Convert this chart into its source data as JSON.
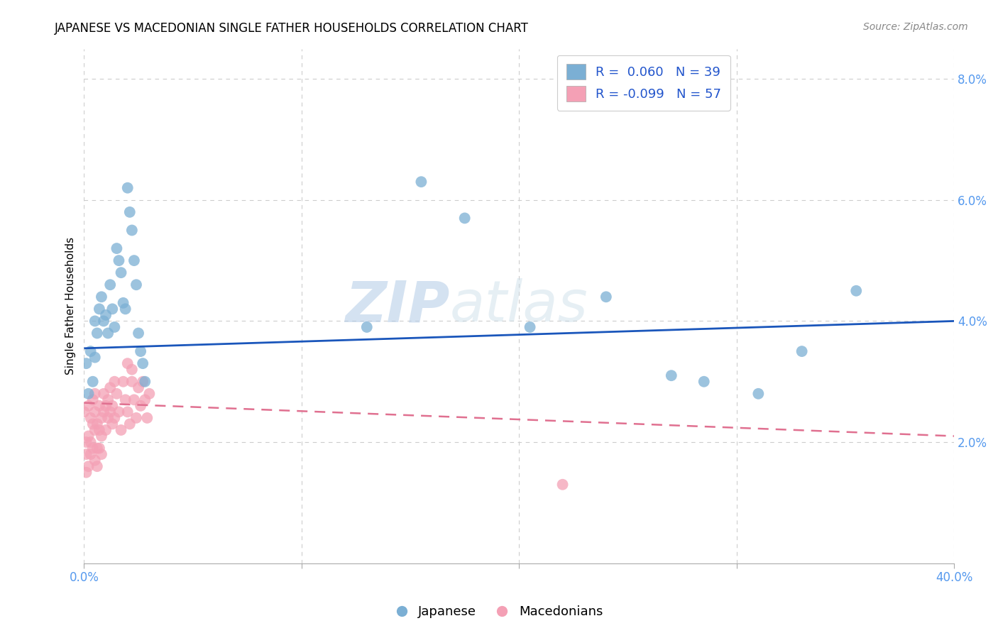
{
  "title": "JAPANESE VS MACEDONIAN SINGLE FATHER HOUSEHOLDS CORRELATION CHART",
  "source": "Source: ZipAtlas.com",
  "ylabel": "Single Father Households",
  "watermark_zip": "ZIP",
  "watermark_atlas": "atlas",
  "xlim": [
    0.0,
    0.4
  ],
  "ylim": [
    0.0,
    0.085
  ],
  "yticks": [
    0.02,
    0.04,
    0.06,
    0.08
  ],
  "ytick_labels": [
    "2.0%",
    "4.0%",
    "6.0%",
    "8.0%"
  ],
  "xticks": [
    0.0,
    0.1,
    0.2,
    0.3,
    0.4
  ],
  "xtick_labels": [
    "0.0%",
    "",
    "",
    "",
    "40.0%"
  ],
  "legend_japanese": "R =  0.060   N = 39",
  "legend_macedonian": "R = -0.099   N = 57",
  "japanese_color": "#7bafd4",
  "macedonian_color": "#f4a0b5",
  "trend_japanese_color": "#1a56bb",
  "trend_macedonian_color": "#e07090",
  "background_color": "#ffffff",
  "japanese_x": [
    0.001,
    0.002,
    0.003,
    0.004,
    0.005,
    0.005,
    0.006,
    0.007,
    0.008,
    0.009,
    0.01,
    0.011,
    0.012,
    0.013,
    0.014,
    0.015,
    0.016,
    0.017,
    0.018,
    0.019,
    0.02,
    0.021,
    0.022,
    0.023,
    0.024,
    0.025,
    0.026,
    0.027,
    0.028,
    0.13,
    0.155,
    0.175,
    0.205,
    0.24,
    0.27,
    0.285,
    0.31,
    0.33,
    0.355
  ],
  "japanese_y": [
    0.033,
    0.028,
    0.035,
    0.03,
    0.04,
    0.034,
    0.038,
    0.042,
    0.044,
    0.04,
    0.041,
    0.038,
    0.046,
    0.042,
    0.039,
    0.052,
    0.05,
    0.048,
    0.043,
    0.042,
    0.062,
    0.058,
    0.055,
    0.05,
    0.046,
    0.038,
    0.035,
    0.033,
    0.03,
    0.039,
    0.063,
    0.057,
    0.039,
    0.044,
    0.031,
    0.03,
    0.028,
    0.035,
    0.045
  ],
  "macedonian_x": [
    0.0,
    0.001,
    0.001,
    0.002,
    0.002,
    0.003,
    0.003,
    0.004,
    0.004,
    0.005,
    0.005,
    0.005,
    0.006,
    0.006,
    0.007,
    0.007,
    0.008,
    0.008,
    0.009,
    0.009,
    0.01,
    0.01,
    0.011,
    0.011,
    0.012,
    0.012,
    0.013,
    0.013,
    0.014,
    0.014,
    0.015,
    0.016,
    0.017,
    0.018,
    0.019,
    0.02,
    0.021,
    0.022,
    0.023,
    0.024,
    0.025,
    0.026,
    0.027,
    0.028,
    0.029,
    0.03,
    0.001,
    0.002,
    0.003,
    0.004,
    0.005,
    0.006,
    0.007,
    0.008,
    0.02,
    0.022,
    0.22
  ],
  "macedonian_y": [
    0.025,
    0.02,
    0.018,
    0.021,
    0.026,
    0.024,
    0.02,
    0.023,
    0.027,
    0.022,
    0.025,
    0.028,
    0.019,
    0.023,
    0.022,
    0.026,
    0.024,
    0.021,
    0.025,
    0.028,
    0.022,
    0.026,
    0.024,
    0.027,
    0.025,
    0.029,
    0.023,
    0.026,
    0.03,
    0.024,
    0.028,
    0.025,
    0.022,
    0.03,
    0.027,
    0.025,
    0.023,
    0.03,
    0.027,
    0.024,
    0.029,
    0.026,
    0.03,
    0.027,
    0.024,
    0.028,
    0.015,
    0.016,
    0.018,
    0.019,
    0.017,
    0.016,
    0.019,
    0.018,
    0.033,
    0.032,
    0.013
  ],
  "japanese_trend_x": [
    0.0,
    0.4
  ],
  "japanese_trend_y": [
    0.0355,
    0.04
  ],
  "macedonian_trend_x": [
    0.0,
    0.4
  ],
  "macedonian_trend_y": [
    0.0265,
    0.021
  ]
}
